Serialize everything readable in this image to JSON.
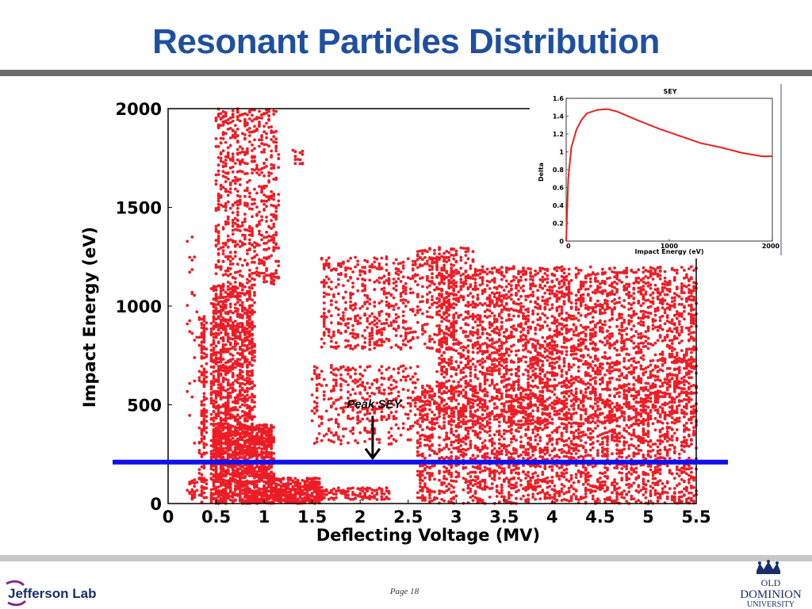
{
  "slide": {
    "title": "Resonant Particles Distribution",
    "page_label": "Page 18",
    "logo_left_text": "Jefferson Lab",
    "logo_right_text": [
      "OLD",
      "DOMINION",
      "UNIVERSITY"
    ]
  },
  "colors": {
    "title": "#1f4fa0",
    "scatter_points": "#ee1c25",
    "threshold_line": "#1010ee",
    "sey_curve": "#e82020",
    "top_rule": "#6b6b6b",
    "bottom_rule": "#c8c8c8"
  },
  "chart_data": [
    {
      "type": "scatter",
      "title": "",
      "xlabel": "Deflecting Voltage (MV)",
      "ylabel": "Impact Energy (eV)",
      "xlim": [
        0,
        5.5
      ],
      "ylim": [
        0,
        2000
      ],
      "x_ticks": [
        "0",
        "0.5",
        "1",
        "1.5",
        "2",
        "2.5",
        "3",
        "3.5",
        "4",
        "4.5",
        "5",
        "5.5"
      ],
      "y_ticks": [
        "0",
        "500",
        "1000",
        "1500",
        "2000"
      ],
      "grid": false,
      "threshold_line": {
        "y": 210,
        "label": "Peak SEY"
      },
      "annotation": {
        "text": "Peak SEY",
        "arrow_to": {
          "x": 2.13,
          "y": 230
        }
      },
      "point_clusters": [
        {
          "x_range": [
            0.2,
            0.3
          ],
          "y_range": [
            20,
            120
          ],
          "count": 30
        },
        {
          "x_range": [
            0.2,
            0.3
          ],
          "y_range": [
            300,
            1400
          ],
          "count": 25
        },
        {
          "x_range": [
            0.33,
            0.4
          ],
          "y_range": [
            0,
            950
          ],
          "count": 180
        },
        {
          "x_range": [
            0.45,
            1.1
          ],
          "y_range": [
            0,
            400
          ],
          "count": 1400
        },
        {
          "x_range": [
            0.45,
            0.9
          ],
          "y_range": [
            400,
            1100
          ],
          "count": 900
        },
        {
          "x_range": [
            0.5,
            1.15
          ],
          "y_range": [
            1100,
            2000
          ],
          "count": 700
        },
        {
          "x_range": [
            1.1,
            1.6
          ],
          "y_range": [
            0,
            130
          ],
          "count": 400
        },
        {
          "x_range": [
            1.3,
            1.4
          ],
          "y_range": [
            1700,
            1800
          ],
          "count": 15
        },
        {
          "x_range": [
            1.5,
            2.6
          ],
          "y_range": [
            300,
            700
          ],
          "count": 380
        },
        {
          "x_range": [
            1.6,
            2.3
          ],
          "y_range": [
            20,
            80
          ],
          "count": 120
        },
        {
          "x_range": [
            1.6,
            3.0
          ],
          "y_range": [
            780,
            1250
          ],
          "count": 650
        },
        {
          "x_range": [
            2.6,
            5.5
          ],
          "y_range": [
            0,
            400
          ],
          "count": 1700
        },
        {
          "x_range": [
            2.6,
            5.5
          ],
          "y_range": [
            400,
            600
          ],
          "count": 1300
        },
        {
          "x_range": [
            2.8,
            5.5
          ],
          "y_range": [
            600,
            1200
          ],
          "count": 2500
        },
        {
          "x_range": [
            2.6,
            3.2
          ],
          "y_range": [
            1200,
            1300
          ],
          "count": 80
        }
      ]
    },
    {
      "type": "line",
      "title": "SEY",
      "xlabel": "Impact Energy (eV)",
      "ylabel": "Delta",
      "xlim": [
        0,
        2000
      ],
      "ylim": [
        0,
        1.6
      ],
      "x_ticks": [
        "0",
        "1000",
        "2000"
      ],
      "y_ticks": [
        "0",
        "0.2",
        "0.4",
        "0.6",
        "0.8",
        "1",
        "1.2",
        "1.4",
        "1.6"
      ],
      "x": [
        0,
        20,
        50,
        100,
        150,
        200,
        300,
        400,
        500,
        700,
        900,
        1100,
        1300,
        1500,
        1700,
        1900,
        2000
      ],
      "y": [
        0,
        0.7,
        1.05,
        1.25,
        1.36,
        1.43,
        1.47,
        1.48,
        1.45,
        1.35,
        1.26,
        1.18,
        1.1,
        1.05,
        0.99,
        0.95,
        0.95
      ]
    }
  ]
}
